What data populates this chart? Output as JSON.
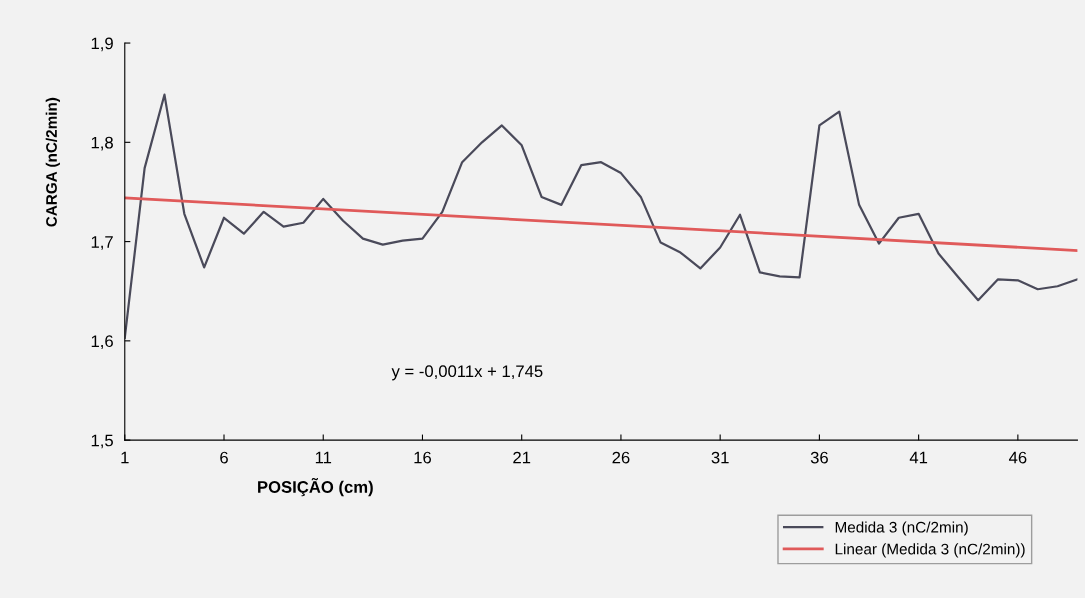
{
  "chart_data": {
    "type": "line",
    "xlabel": "POSIÇÃO (cm)",
    "ylabel": "CARGA (nC/2min)",
    "x": [
      1,
      2,
      3,
      4,
      5,
      6,
      7,
      8,
      9,
      10,
      11,
      12,
      13,
      14,
      15,
      16,
      17,
      18,
      19,
      20,
      21,
      22,
      23,
      24,
      25,
      26,
      27,
      28,
      29,
      30,
      31,
      32,
      33,
      34,
      35,
      36,
      37,
      38,
      39,
      40,
      41,
      42,
      43,
      44,
      45,
      46,
      47,
      48,
      49
    ],
    "series": [
      {
        "name": "Medida 3 (nC/2min)",
        "color": "#4a4a5a",
        "values": [
          1.603,
          1.774,
          1.848,
          1.728,
          1.674,
          1.724,
          1.708,
          1.73,
          1.715,
          1.719,
          1.743,
          1.721,
          1.703,
          1.697,
          1.701,
          1.703,
          1.73,
          1.78,
          1.8,
          1.817,
          1.797,
          1.745,
          1.737,
          1.777,
          1.78,
          1.769,
          1.745,
          1.699,
          1.689,
          1.673,
          1.694,
          1.727,
          1.669,
          1.665,
          1.664,
          1.817,
          1.831,
          1.737,
          1.698,
          1.724,
          1.728,
          1.688,
          1.664,
          1.641,
          1.662,
          1.661,
          1.652,
          1.655,
          1.662
        ]
      },
      {
        "name": "Linear (Medida 3 (nC/2min))",
        "color": "#e05a5a",
        "type": "line",
        "x": [
          1,
          49
        ],
        "values": [
          1.744,
          1.691
        ]
      }
    ],
    "xlim": [
      1,
      49
    ],
    "xticks": [
      1,
      6,
      11,
      16,
      21,
      26,
      31,
      36,
      41,
      46
    ],
    "ylim": [
      1.5,
      1.9
    ],
    "yticks": [
      {
        "value": 1.5,
        "label": "1,5"
      },
      {
        "value": 1.6,
        "label": "1,6"
      },
      {
        "value": 1.7,
        "label": "1,7"
      },
      {
        "value": 1.8,
        "label": "1,8"
      },
      {
        "value": 1.9,
        "label": "1,9"
      }
    ],
    "annotations": [
      "y = -0,0011x + 1,745"
    ],
    "grid": false,
    "legend": "bottom right",
    "marker": "none",
    "line_style": "solid"
  }
}
